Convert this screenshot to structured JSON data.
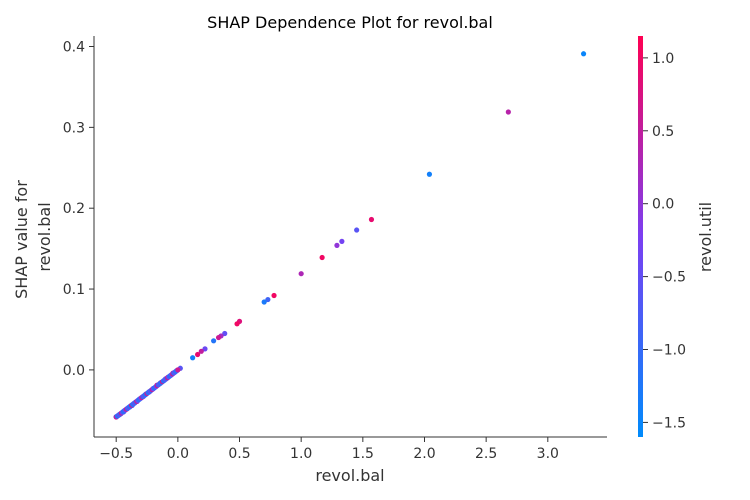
{
  "chart_data": {
    "type": "scatter",
    "title": "SHAP Dependence Plot for revol.bal",
    "xlabel": "revol.bal",
    "ylabel_lines": [
      "SHAP value for",
      "revol.bal"
    ],
    "xlim": [
      -0.68,
      3.48
    ],
    "ylim": [
      -0.083,
      0.413
    ],
    "xticks": [
      -0.5,
      0.0,
      0.5,
      1.0,
      1.5,
      2.0,
      2.5,
      3.0
    ],
    "xtick_labels": [
      "−0.5",
      "0.0",
      "0.5",
      "1.0",
      "1.5",
      "2.0",
      "2.5",
      "3.0"
    ],
    "yticks": [
      0.0,
      0.1,
      0.2,
      0.3,
      0.4
    ],
    "ytick_labels": [
      "0.0",
      "0.1",
      "0.2",
      "0.3",
      "0.4"
    ],
    "colorbar": {
      "label": "revol.util",
      "range": [
        -1.6,
        1.15
      ],
      "ticks": [
        1.0,
        0.5,
        0.0,
        -0.5,
        -1.0,
        -1.5
      ],
      "tick_labels": [
        "1.0",
        "0.5",
        "0.0",
        "−0.5",
        "−1.0",
        "−1.5"
      ],
      "colors": [
        "#008bfb",
        "#7b3ff2",
        "#ff0052"
      ]
    },
    "grid": false,
    "points": [
      {
        "x": 3.29,
        "y": 0.391,
        "c": -1.5
      },
      {
        "x": 2.68,
        "y": 0.319,
        "c": 0.4
      },
      {
        "x": 2.04,
        "y": 0.242,
        "c": -1.4
      },
      {
        "x": 1.57,
        "y": 0.186,
        "c": 0.9
      },
      {
        "x": 1.45,
        "y": 0.173,
        "c": -0.6
      },
      {
        "x": 1.33,
        "y": 0.159,
        "c": -0.3
      },
      {
        "x": 1.29,
        "y": 0.154,
        "c": 0.0
      },
      {
        "x": 1.17,
        "y": 0.139,
        "c": 1.0
      },
      {
        "x": 1.0,
        "y": 0.119,
        "c": 0.3
      },
      {
        "x": 0.78,
        "y": 0.092,
        "c": 1.0
      },
      {
        "x": 0.73,
        "y": 0.087,
        "c": -0.9
      },
      {
        "x": 0.7,
        "y": 0.084,
        "c": -1.3
      },
      {
        "x": 0.5,
        "y": 0.06,
        "c": 0.8
      },
      {
        "x": 0.48,
        "y": 0.057,
        "c": 1.0
      },
      {
        "x": 0.38,
        "y": 0.045,
        "c": -0.5
      },
      {
        "x": 0.35,
        "y": 0.042,
        "c": 0.2
      },
      {
        "x": 0.33,
        "y": 0.04,
        "c": 0.6
      },
      {
        "x": 0.29,
        "y": 0.036,
        "c": -1.2
      },
      {
        "x": 0.22,
        "y": 0.026,
        "c": -0.4
      },
      {
        "x": 0.19,
        "y": 0.023,
        "c": 0.5
      },
      {
        "x": 0.16,
        "y": 0.019,
        "c": 0.9
      },
      {
        "x": 0.12,
        "y": 0.015,
        "c": -1.4
      },
      {
        "x": 0.02,
        "y": 0.002,
        "c": -0.6
      },
      {
        "x": -0.01,
        "y": -0.001,
        "c": -0.2
      },
      {
        "x": -0.04,
        "y": -0.004,
        "c": 0.3
      },
      {
        "x": -0.08,
        "y": -0.009,
        "c": 0.7
      },
      {
        "x": -0.1,
        "y": -0.011,
        "c": 0.1
      },
      {
        "x": -0.14,
        "y": -0.016,
        "c": 1.0
      },
      {
        "x": -0.17,
        "y": -0.019,
        "c": 0.6
      },
      {
        "x": -0.2,
        "y": -0.023,
        "c": -0.7
      },
      {
        "x": -0.23,
        "y": -0.027,
        "c": 0.2
      },
      {
        "x": -0.26,
        "y": -0.03,
        "c": -0.5
      },
      {
        "x": -0.28,
        "y": -0.033,
        "c": 0.4
      },
      {
        "x": -0.31,
        "y": -0.036,
        "c": -1.0
      },
      {
        "x": -0.33,
        "y": -0.039,
        "c": -0.3
      },
      {
        "x": -0.35,
        "y": -0.041,
        "c": 0.8
      },
      {
        "x": -0.37,
        "y": -0.044,
        "c": -0.8
      },
      {
        "x": -0.39,
        "y": -0.046,
        "c": 0.0
      },
      {
        "x": -0.41,
        "y": -0.048,
        "c": -1.1
      },
      {
        "x": -0.43,
        "y": -0.05,
        "c": 0.5
      },
      {
        "x": -0.44,
        "y": -0.052,
        "c": -0.4
      },
      {
        "x": -0.46,
        "y": -0.054,
        "c": -1.3
      },
      {
        "x": -0.47,
        "y": -0.055,
        "c": 0.2
      },
      {
        "x": -0.48,
        "y": -0.056,
        "c": -0.9
      },
      {
        "x": -0.49,
        "y": -0.057,
        "c": -1.5
      },
      {
        "x": -0.5,
        "y": -0.058,
        "c": -1.4
      },
      {
        "x": -0.5,
        "y": -0.058,
        "c": -1.2
      }
    ]
  }
}
